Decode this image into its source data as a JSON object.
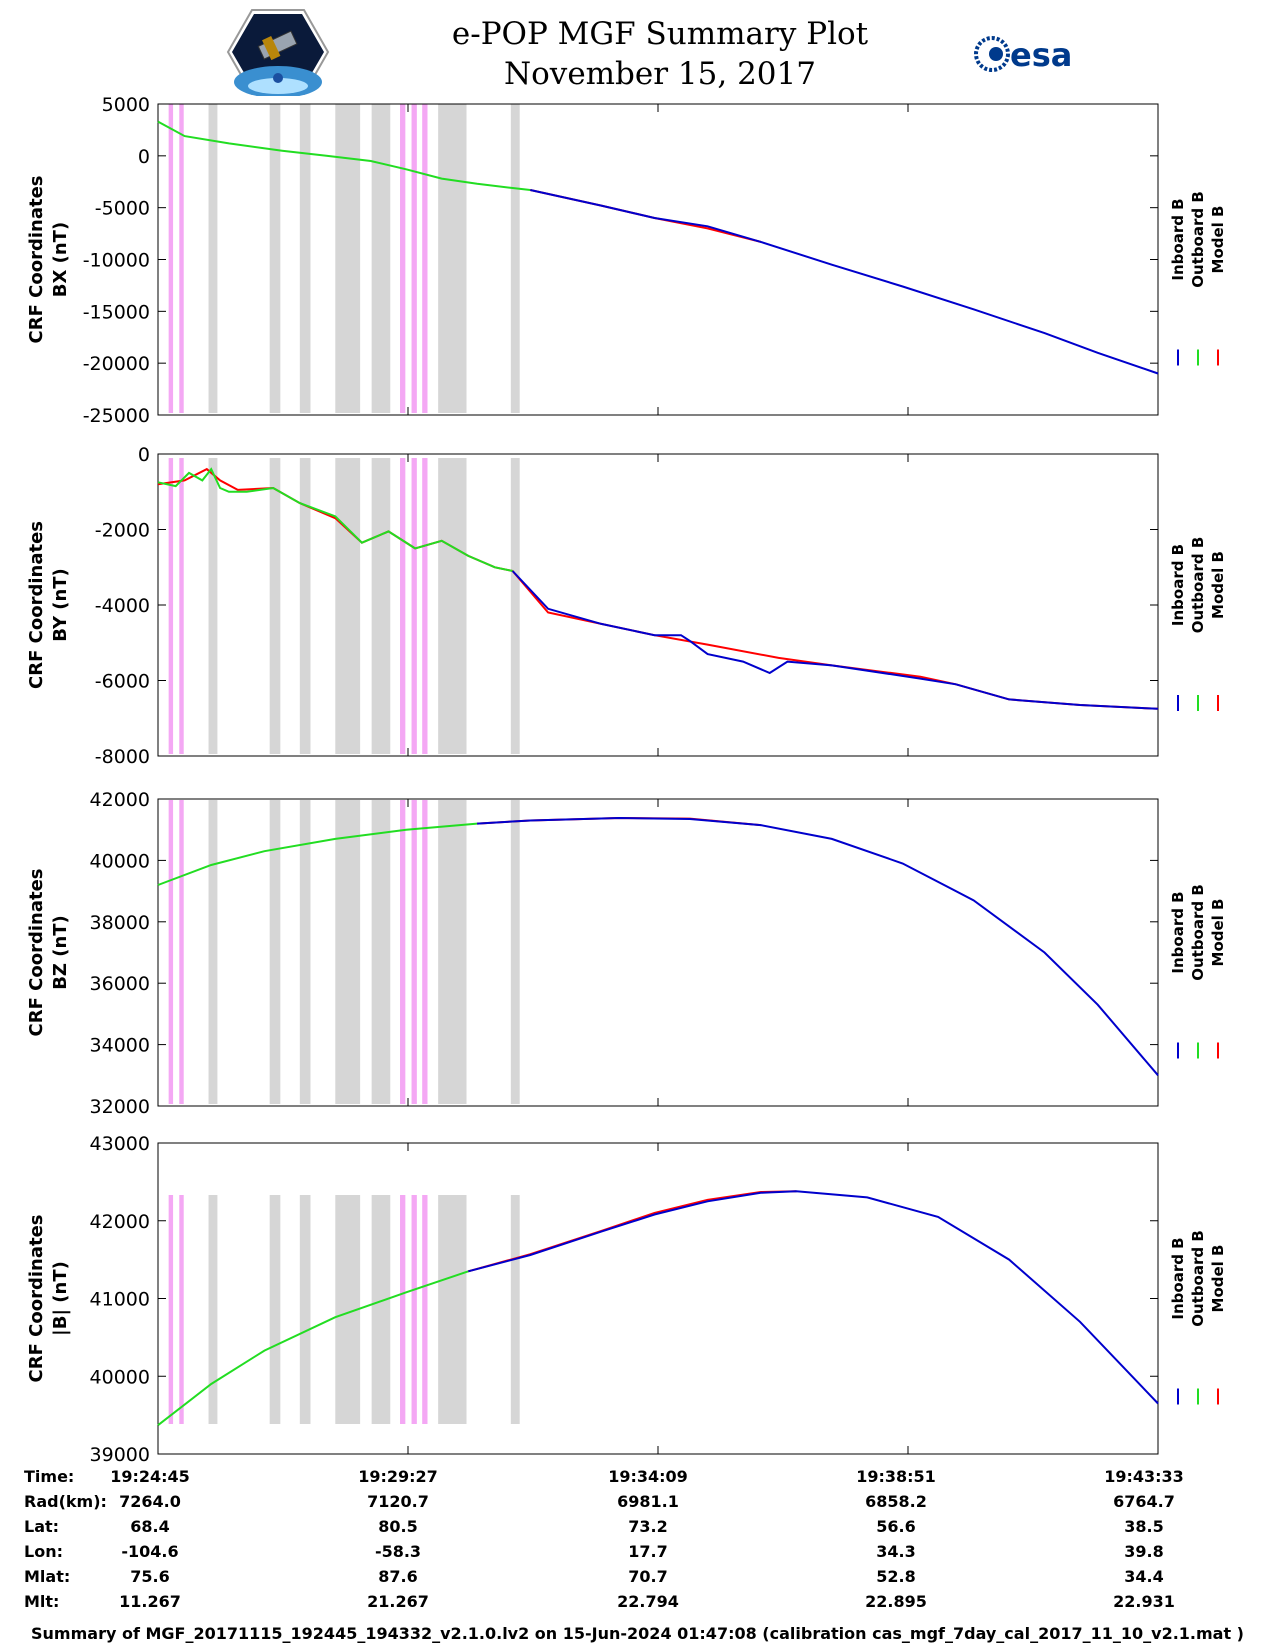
{
  "title": "e-POP MGF Summary Plot",
  "subtitle": "November 15, 2017",
  "logos": {
    "left": "cassiope-mission-patch",
    "right": "esa"
  },
  "colors": {
    "inboard": "#0000cc",
    "outboard": "#22dd22",
    "model": "#ff0000",
    "pink_band": "#f4a8f4",
    "gray_band": "#d6d6d6"
  },
  "legend": [
    "Inboard B",
    "Outboard B",
    "Model B"
  ],
  "chart_data": [
    {
      "type": "line",
      "ylabel": [
        "CRF Coordinates",
        "BX (nT)"
      ],
      "ylim": [
        -25000,
        5000
      ],
      "yticks": [
        5000,
        0,
        -5000,
        -10000,
        -15000,
        -20000,
        -25000
      ],
      "xlim": [
        0,
        1128
      ],
      "xticks": [
        0,
        282,
        564,
        846,
        1128
      ],
      "pink_bands": [
        [
          12,
          17
        ],
        [
          24,
          29
        ],
        [
          273,
          279
        ],
        [
          286,
          292
        ],
        [
          298,
          304
        ]
      ],
      "gray_bands": [
        [
          57,
          67
        ],
        [
          126,
          138
        ],
        [
          160,
          172
        ],
        [
          200,
          228
        ],
        [
          241,
          262
        ],
        [
          316,
          348
        ],
        [
          398,
          408
        ]
      ],
      "series": [
        {
          "name": "Outboard B",
          "color": "outboard",
          "x": [
            0,
            30,
            80,
            140,
            190,
            240,
            280,
            320,
            360,
            400,
            420
          ],
          "y": [
            3300,
            1900,
            1200,
            500,
            0,
            -500,
            -1300,
            -2200,
            -2700,
            -3100,
            -3300
          ]
        },
        {
          "name": "Model B",
          "color": "model",
          "x": [
            420,
            500,
            560,
            620,
            680
          ],
          "y": [
            -3300,
            -4800,
            -6000,
            -7000,
            -8300
          ]
        },
        {
          "name": "Inboard B",
          "color": "inboard",
          "x": [
            420,
            500,
            560,
            620,
            680,
            760,
            840,
            920,
            1000,
            1060,
            1128
          ],
          "y": [
            -3300,
            -4800,
            -6000,
            -6800,
            -8300,
            -10500,
            -12600,
            -14800,
            -17100,
            -19000,
            -21000
          ]
        }
      ]
    },
    {
      "type": "line",
      "ylabel": [
        "CRF Coordinates",
        "BY (nT)"
      ],
      "ylim": [
        -8000,
        0
      ],
      "yticks": [
        0,
        -2000,
        -4000,
        -6000,
        -8000
      ],
      "xlim": [
        0,
        1128
      ],
      "xticks": [
        0,
        282,
        564,
        846,
        1128
      ],
      "pink_bands": [
        [
          12,
          17
        ],
        [
          24,
          29
        ],
        [
          273,
          279
        ],
        [
          286,
          292
        ],
        [
          298,
          304
        ]
      ],
      "gray_bands": [
        [
          57,
          67
        ],
        [
          126,
          138
        ],
        [
          160,
          172
        ],
        [
          200,
          228
        ],
        [
          241,
          262
        ],
        [
          316,
          348
        ],
        [
          398,
          408
        ]
      ],
      "series": [
        {
          "name": "Model B",
          "color": "model",
          "x": [
            0,
            30,
            55,
            70,
            90,
            130,
            160,
            200,
            230,
            260,
            290,
            320,
            350,
            380,
            400,
            440,
            500,
            560,
            620,
            700,
            760,
            860,
            900,
            960,
            1040,
            1128
          ],
          "y": [
            -800,
            -700,
            -400,
            -700,
            -950,
            -900,
            -1300,
            -1700,
            -2350,
            -2050,
            -2500,
            -2300,
            -2700,
            -3000,
            -3100,
            -4200,
            -4500,
            -4800,
            -5050,
            -5400,
            -5600,
            -5900,
            -6100,
            -6500,
            -6650,
            -6750
          ]
        },
        {
          "name": "Outboard B",
          "color": "outboard",
          "x": [
            0,
            20,
            35,
            50,
            60,
            70,
            80,
            100,
            130,
            160,
            200,
            230,
            260,
            290,
            320,
            350,
            380,
            400
          ],
          "y": [
            -750,
            -850,
            -500,
            -700,
            -400,
            -900,
            -1000,
            -1000,
            -900,
            -1300,
            -1650,
            -2350,
            -2050,
            -2500,
            -2300,
            -2700,
            -3000,
            -3100
          ]
        },
        {
          "name": "Inboard B",
          "color": "inboard",
          "x": [
            400,
            440,
            500,
            560,
            590,
            600,
            620,
            660,
            690,
            710,
            760,
            860,
            900,
            960,
            1040,
            1128
          ],
          "y": [
            -3100,
            -4100,
            -4500,
            -4800,
            -4800,
            -4950,
            -5300,
            -5500,
            -5800,
            -5500,
            -5600,
            -5950,
            -6100,
            -6500,
            -6650,
            -6750
          ]
        }
      ]
    },
    {
      "type": "line",
      "ylabel": [
        "CRF Coordinates",
        "BZ (nT)"
      ],
      "ylim": [
        32000,
        42000
      ],
      "yticks": [
        42000,
        40000,
        38000,
        36000,
        34000,
        32000
      ],
      "xlim": [
        0,
        1128
      ],
      "xticks": [
        0,
        282,
        564,
        846,
        1128
      ],
      "pink_bands": [
        [
          12,
          17
        ],
        [
          24,
          29
        ],
        [
          273,
          279
        ],
        [
          286,
          292
        ],
        [
          298,
          304
        ]
      ],
      "gray_bands": [
        [
          57,
          67
        ],
        [
          126,
          138
        ],
        [
          160,
          172
        ],
        [
          200,
          228
        ],
        [
          241,
          262
        ],
        [
          316,
          348
        ],
        [
          398,
          408
        ]
      ],
      "series": [
        {
          "name": "Outboard B",
          "color": "outboard",
          "x": [
            0,
            60,
            120,
            200,
            280,
            360
          ],
          "y": [
            39200,
            39850,
            40300,
            40700,
            41000,
            41200
          ]
        },
        {
          "name": "Model B",
          "color": "model",
          "x": [
            360,
            420,
            520,
            600,
            680
          ],
          "y": [
            41200,
            41300,
            41380,
            41360,
            41150
          ]
        },
        {
          "name": "Inboard B",
          "color": "inboard",
          "x": [
            360,
            420,
            520,
            600,
            680,
            760,
            840,
            920,
            1000,
            1060,
            1128
          ],
          "y": [
            41200,
            41300,
            41380,
            41350,
            41150,
            40700,
            39900,
            38700,
            37000,
            35300,
            33000
          ]
        }
      ]
    },
    {
      "type": "line",
      "ylabel": [
        "CRF Coordinates",
        "|B| (nT)"
      ],
      "ylim": [
        39000,
        43000
      ],
      "yticks": [
        43000,
        42000,
        41000,
        40000,
        39000
      ],
      "xlim": [
        0,
        1128
      ],
      "xticks": [
        0,
        282,
        564,
        846,
        1128
      ],
      "pink_bands": [
        [
          12,
          17
        ],
        [
          24,
          29
        ],
        [
          273,
          279
        ],
        [
          286,
          292
        ],
        [
          298,
          304
        ]
      ],
      "gray_bands": [
        [
          57,
          67
        ],
        [
          126,
          138
        ],
        [
          160,
          172
        ],
        [
          200,
          228
        ],
        [
          241,
          262
        ],
        [
          316,
          348
        ],
        [
          398,
          408
        ]
      ],
      "series": [
        {
          "name": "Outboard B",
          "color": "outboard",
          "x": [
            0,
            60,
            120,
            200,
            280,
            350
          ],
          "y": [
            39370,
            39900,
            40330,
            40760,
            41080,
            41350
          ]
        },
        {
          "name": "Model B",
          "color": "model",
          "x": [
            350,
            420,
            500,
            560,
            620,
            680,
            720
          ],
          "y": [
            41350,
            41570,
            41870,
            42100,
            42270,
            42370,
            42380
          ]
        },
        {
          "name": "Inboard B",
          "color": "inboard",
          "x": [
            350,
            420,
            500,
            560,
            620,
            680,
            720,
            800,
            880,
            960,
            1040,
            1128
          ],
          "y": [
            41350,
            41560,
            41860,
            42080,
            42250,
            42360,
            42380,
            42300,
            42050,
            41500,
            40700,
            39650
          ]
        }
      ]
    }
  ],
  "info_table": {
    "rows": [
      {
        "label": "Time:",
        "values": [
          "19:24:45",
          "19:29:27",
          "19:34:09",
          "19:38:51",
          "19:43:33"
        ]
      },
      {
        "label": "Rad(km):",
        "values": [
          "7264.0",
          "7120.7",
          "6981.1",
          "6858.2",
          "6764.7"
        ]
      },
      {
        "label": "Lat:",
        "values": [
          "68.4",
          "80.5",
          "73.2",
          "56.6",
          "38.5"
        ]
      },
      {
        "label": "Lon:",
        "values": [
          "-104.6",
          "-58.3",
          "17.7",
          "34.3",
          "39.8"
        ]
      },
      {
        "label": "Mlat:",
        "values": [
          "75.6",
          "87.6",
          "70.7",
          "52.8",
          "34.4"
        ]
      },
      {
        "label": "Mlt:",
        "values": [
          "11.267",
          "21.267",
          "22.794",
          "22.895",
          "22.931"
        ]
      }
    ]
  },
  "footer": "Summary of MGF_20171115_192445_194332_v2.1.0.lv2 on 15-Jun-2024 01:47:08 (calibration cas_mgf_7day_cal_2017_11_10_v2.1.mat )"
}
